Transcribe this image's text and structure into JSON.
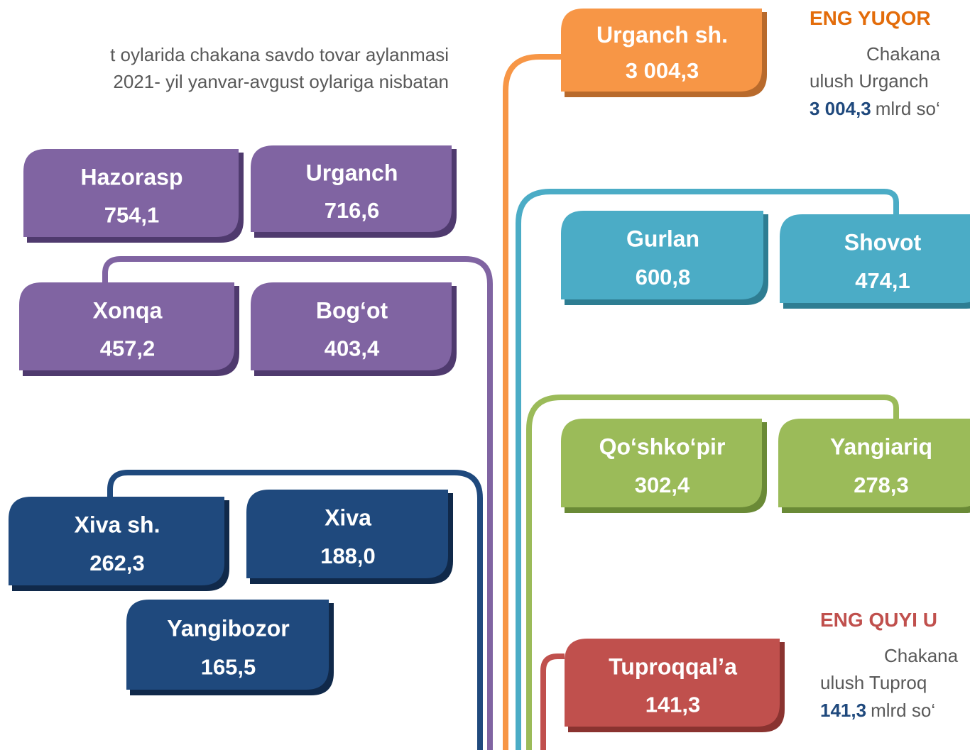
{
  "intro": [
    "t oylarida chakana savdo tovar aylanmasi",
    "2021- yil yanvar-avgust oylariga nisbatan"
  ],
  "groups": [
    {
      "boxes": [
        {
          "name": "Urganch sh.",
          "value": "3 004,3"
        }
      ]
    },
    {
      "boxes": [
        {
          "name": "Hazorasp",
          "value": "754,1"
        },
        {
          "name": "Urganch",
          "value": "716,6"
        },
        {
          "name": "Xonqa",
          "value": "457,2"
        },
        {
          "name": "Bog‘ot",
          "value": "403,4"
        }
      ]
    },
    {
      "boxes": [
        {
          "name": "Gurlan",
          "value": "600,8"
        },
        {
          "name": "Shovot",
          "value": "474,1"
        }
      ]
    },
    {
      "boxes": [
        {
          "name": "Qo‘shko‘pir",
          "value": "302,4"
        },
        {
          "name": "Yangiariq",
          "value": "278,3"
        }
      ]
    },
    {
      "boxes": [
        {
          "name": "Xiva sh.",
          "value": "262,3"
        },
        {
          "name": "Xiva",
          "value": "188,0"
        },
        {
          "name": "Yangibozor",
          "value": "165,5"
        }
      ]
    },
    {
      "boxes": [
        {
          "name": "Tuproqqal’a",
          "value": "141,3"
        }
      ]
    }
  ],
  "notes": [
    {
      "heading": "ENG YUQOR",
      "lines": [
        "Chakana",
        "ulush  Urganch"
      ],
      "value": "3 004,3",
      "unit": "mlrd so‘"
    },
    {
      "heading": "ENG QUYI U",
      "lines": [
        "Chakana",
        "ulush  Tuproq"
      ],
      "value": "141,3",
      "unit": "mlrd  so‘"
    }
  ]
}
